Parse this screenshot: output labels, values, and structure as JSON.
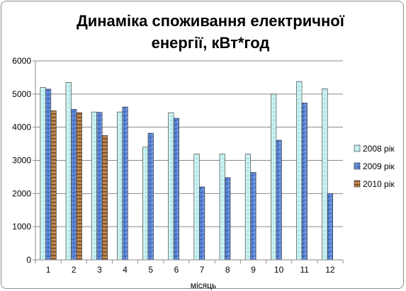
{
  "chart_data": {
    "type": "bar",
    "title_line1": "Динаміка споживання електричної",
    "title_line2": "енергії, кВт*год",
    "xlabel": "місяць",
    "ylabel": "",
    "ylim": [
      0,
      6000
    ],
    "yticks": [
      "0",
      "1000",
      "2000",
      "3000",
      "4000",
      "5000",
      "6000"
    ],
    "categories": [
      "1",
      "2",
      "3",
      "4",
      "5",
      "6",
      "7",
      "8",
      "9",
      "10",
      "11",
      "12"
    ],
    "grid": true,
    "legend_position": "right",
    "series": [
      {
        "name": "2008 рік",
        "color": "#bfeeee",
        "values": [
          5200,
          5350,
          4460,
          4460,
          3400,
          4440,
          3190,
          3190,
          3190,
          5000,
          5380,
          5160
        ]
      },
      {
        "name": "2009 рік",
        "color": "#4f79c9",
        "values": [
          5150,
          4540,
          4450,
          4610,
          3820,
          4270,
          2200,
          2480,
          2640,
          3610,
          4730,
          2000
        ]
      },
      {
        "name": "2010 рік",
        "color": "#a06a3a",
        "values": [
          4500,
          4440,
          3750,
          null,
          null,
          null,
          null,
          null,
          null,
          null,
          null,
          null
        ]
      }
    ]
  }
}
